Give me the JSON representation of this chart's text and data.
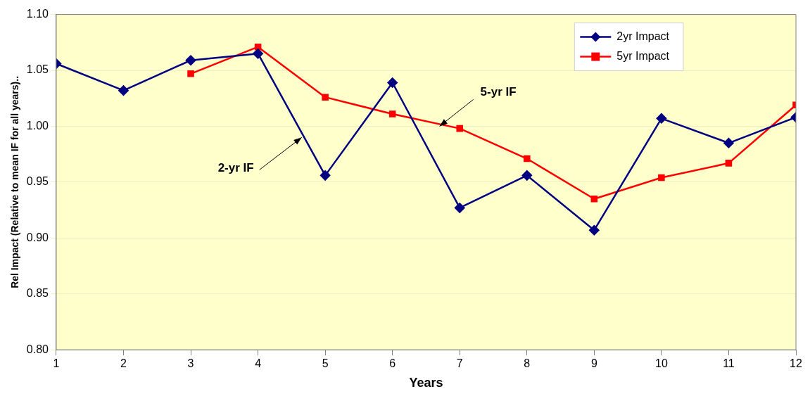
{
  "chart_data": {
    "type": "line",
    "xlabel": "Years",
    "ylabel": "Rel Impact (Relative to mean IF for all years)..",
    "x": [
      1,
      2,
      3,
      4,
      5,
      6,
      7,
      8,
      9,
      10,
      11,
      12
    ],
    "xlim": [
      1,
      12
    ],
    "xticks": [
      1,
      2,
      3,
      4,
      5,
      6,
      7,
      8,
      9,
      10,
      11,
      12
    ],
    "ylim": [
      0.8,
      1.1
    ],
    "yticks": [
      {
        "value": 0.8,
        "label": "0.80"
      },
      {
        "value": 0.85,
        "label": "0.85"
      },
      {
        "value": 0.9,
        "label": "0.90"
      },
      {
        "value": 0.95,
        "label": "0.95"
      },
      {
        "value": 1.0,
        "label": "1.00"
      },
      {
        "value": 1.05,
        "label": "1.05"
      },
      {
        "value": 1.1,
        "label": "1.10"
      }
    ],
    "series": [
      {
        "name": "2yr Impact",
        "color": "#000080",
        "marker": "diamond",
        "values": [
          1.056,
          1.032,
          1.059,
          1.065,
          0.956,
          1.039,
          0.927,
          0.956,
          0.907,
          1.007,
          0.985,
          1.008
        ]
      },
      {
        "name": "5yr Impact",
        "color": "#ff0000",
        "marker": "square",
        "values": [
          null,
          null,
          1.047,
          1.071,
          1.026,
          1.011,
          0.998,
          0.971,
          0.935,
          0.954,
          0.967,
          1.019
        ]
      }
    ],
    "annotations": [
      {
        "text": "5-yr IF",
        "x": 6.7,
        "y": 1.0
      },
      {
        "text": "2-yr IF",
        "x": 4.65,
        "y": 0.99
      }
    ],
    "grid": "y",
    "legend": "top right",
    "line_style": "solid"
  }
}
